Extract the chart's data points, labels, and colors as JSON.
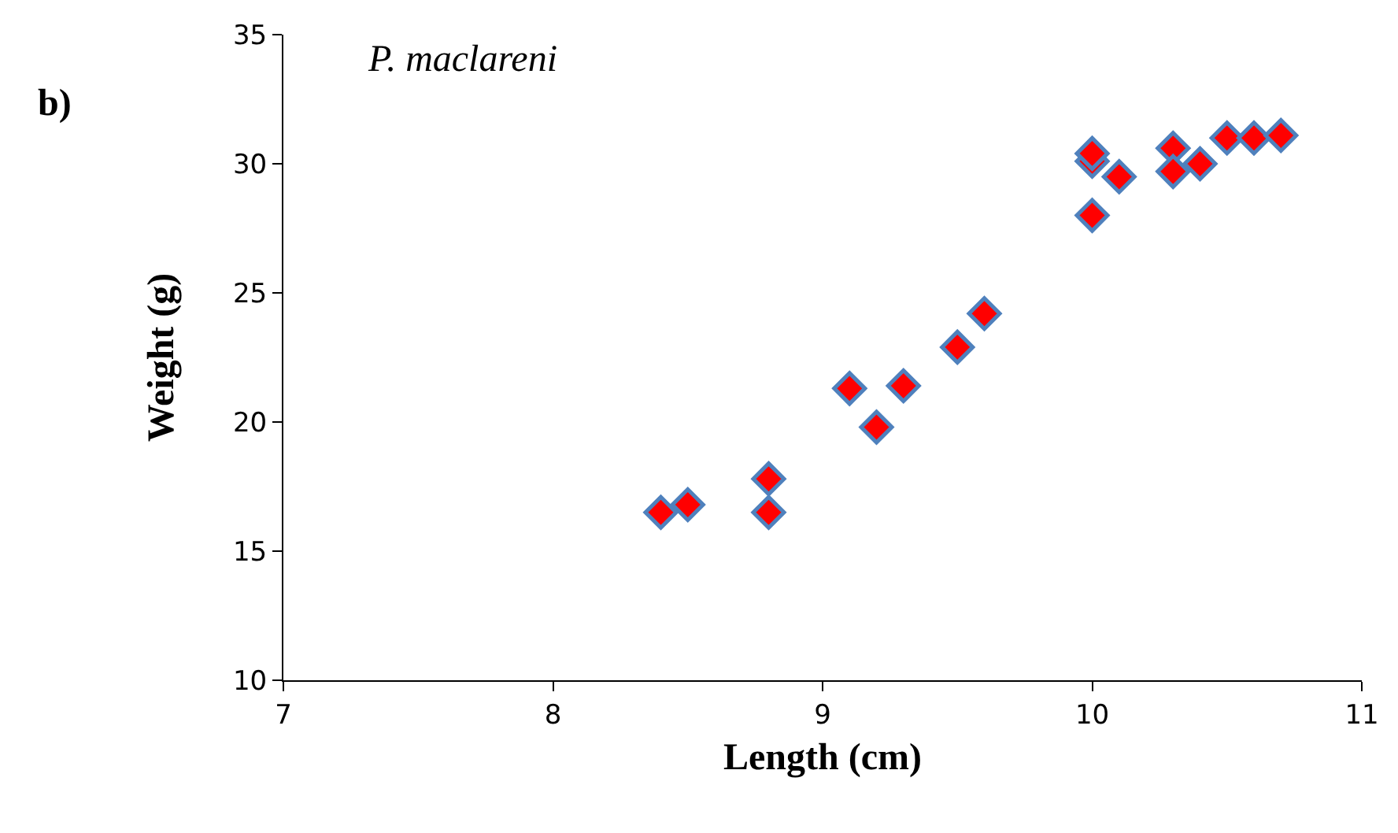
{
  "chart_data": {
    "type": "scatter",
    "xlabel": "Length (cm)",
    "ylabel": "Weight (g)",
    "annotations": [
      "b)",
      "P. maclareni"
    ],
    "x": [
      8.4,
      8.5,
      8.8,
      8.8,
      9.1,
      9.2,
      9.3,
      9.5,
      9.6,
      10.0,
      10.0,
      10.0,
      10.1,
      10.3,
      10.3,
      10.4,
      10.5,
      10.6,
      10.7
    ],
    "series": [
      {
        "color": "#ff0000",
        "values": [
          16.5,
          16.8,
          17.8,
          16.5,
          21.3,
          19.8,
          21.4,
          22.9,
          24.2,
          28.0,
          30.1,
          30.4,
          29.5,
          30.6,
          29.7,
          30.0,
          31.0,
          31.0,
          31.1
        ]
      }
    ],
    "xlim": [
      7,
      11
    ],
    "xticks": [
      7,
      8,
      9,
      10,
      11
    ],
    "ylim": [
      10,
      35
    ],
    "yticks": [
      10,
      15,
      20,
      25,
      30,
      35
    ],
    "marker": "diamond"
  }
}
